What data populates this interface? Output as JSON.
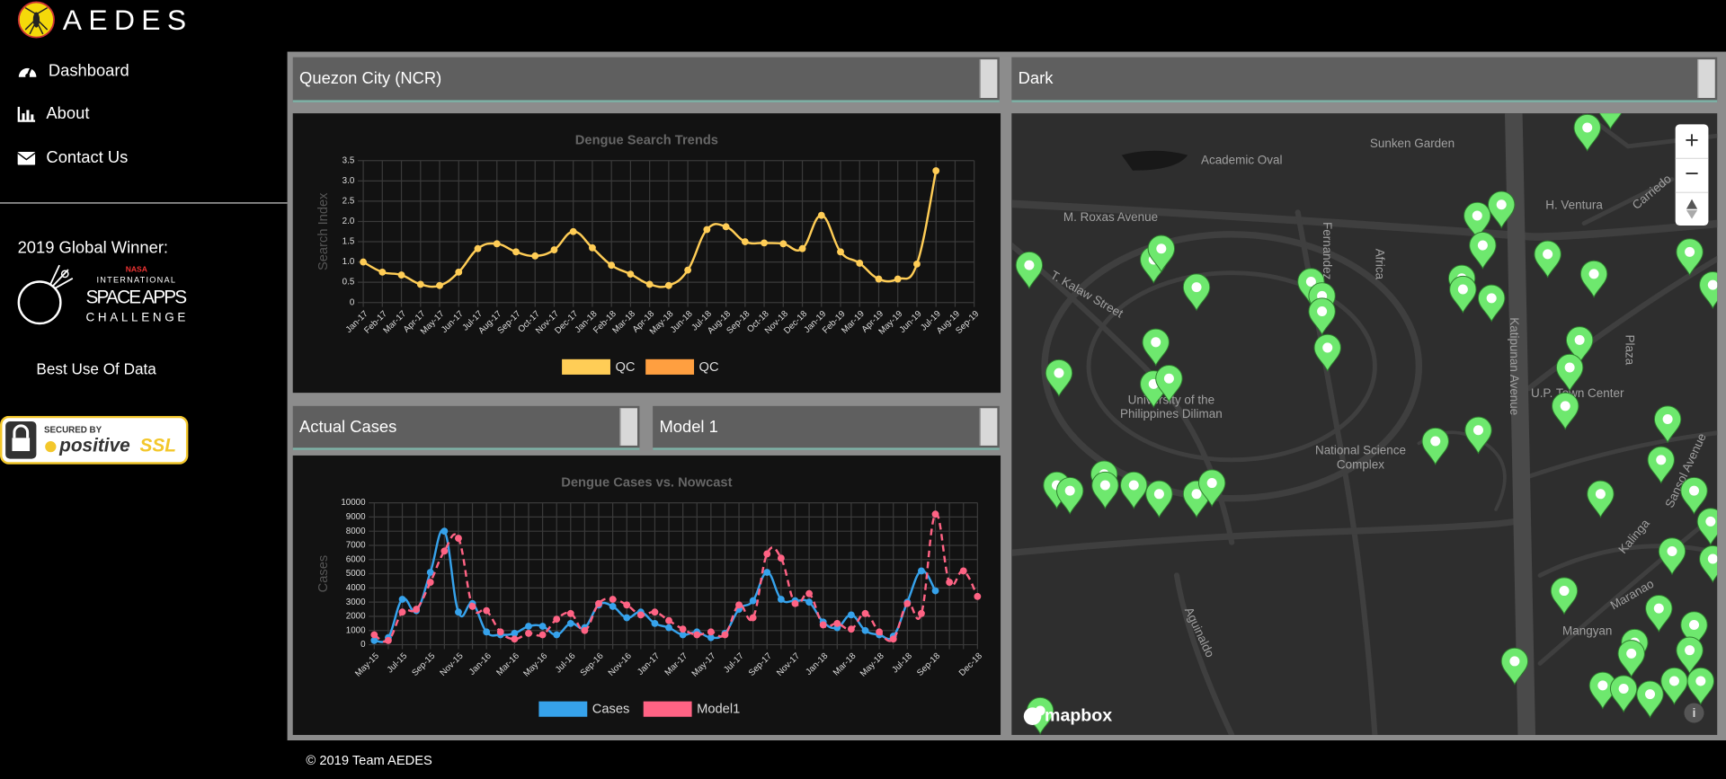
{
  "header": {
    "brand": "AEDES"
  },
  "sidebar": {
    "nav": [
      "Dashboard",
      "About",
      "Contact Us"
    ],
    "award_title": "2019 Global Winner:",
    "award_logo": [
      "NASA",
      "INTERNATIONAL",
      "SPACE APPS",
      "CHALLENGE"
    ],
    "award": "Best Use Of Data",
    "badge": [
      "SECURED BY",
      "positive",
      "SSL"
    ]
  },
  "selects": {
    "location": "Quezon City (NCR)",
    "style": "Dark",
    "data": "Actual Cases",
    "model": "Model 1"
  },
  "charts": [
    {
      "type": "line",
      "title": "Dengue Search Trends",
      "y_label": "Search Index",
      "categories": [
        "Jan-17",
        "Feb-17",
        "Mar-17",
        "Apr-17",
        "May-17",
        "Jun-17",
        "Jul-17",
        "Aug-17",
        "Sep-17",
        "Oct-17",
        "Nov-17",
        "Dec-17",
        "Jan-18",
        "Feb-18",
        "Mar-18",
        "Apr-18",
        "May-18",
        "Jun-18",
        "Jul-18",
        "Aug-18",
        "Sep-18",
        "Oct-18",
        "Nov-18",
        "Dec-18",
        "Jan-19",
        "Feb-19",
        "Mar-19",
        "Apr-19",
        "May-19",
        "Jun-19",
        "Jul-19",
        "Aug-19",
        "Sep-19"
      ],
      "series": [
        {
          "name": "QC",
          "color": "#ffcd56",
          "values": [
            1.0,
            0.75,
            0.68,
            0.45,
            0.42,
            0.75,
            1.33,
            1.45,
            1.25,
            1.15,
            1.3,
            1.75,
            1.35,
            0.92,
            0.7,
            0.45,
            0.42,
            0.8,
            1.8,
            1.87,
            1.5,
            1.47,
            1.45,
            1.33,
            2.15,
            1.25,
            0.97,
            0.58,
            0.58,
            0.95,
            3.25,
            null,
            null
          ]
        },
        {
          "name": "QC",
          "color": "#ff9f40",
          "values": [
            null,
            null,
            null,
            null,
            null,
            null,
            null,
            null,
            null,
            null,
            null,
            null,
            null,
            null,
            null,
            null,
            null,
            null,
            null,
            null,
            null,
            null,
            null,
            null,
            null,
            null,
            null,
            null,
            null,
            null,
            null,
            null,
            null
          ]
        }
      ],
      "ylim": [
        0,
        3.5
      ],
      "yticks": [
        0,
        0.5,
        {
          "value": 1,
          "label": "1.0"
        },
        1.5,
        {
          "value": 2,
          "label": "2.0"
        },
        2.5,
        {
          "value": 3,
          "label": "3.0"
        },
        3.5
      ],
      "grid": true
    },
    {
      "type": "line",
      "title": "Dengue Cases vs. Nowcast",
      "y_label": "Cases",
      "categories": [
        "May-15",
        null,
        "Jul-15",
        null,
        "Sep-15",
        null,
        "Nov-15",
        null,
        "Jan-16",
        null,
        "Mar-16",
        null,
        "May-16",
        null,
        "Jul-16",
        null,
        "Sep-16",
        null,
        "Nov-16",
        null,
        "Jan-17",
        null,
        "Mar-17",
        null,
        "May-17",
        null,
        "Jul-17",
        null,
        "Sep-17",
        null,
        "Nov-17",
        null,
        "Jan-18",
        null,
        "Mar-18",
        null,
        "May-18",
        null,
        "Jul-18",
        null,
        "Sep-18",
        null,
        null,
        "Dec-18"
      ],
      "series": [
        {
          "name": "Cases",
          "color": "#36a2eb",
          "dashed": false,
          "values": [
            300,
            500,
            3200,
            2400,
            5100,
            8000,
            2300,
            2900,
            900,
            700,
            800,
            1300,
            1300,
            700,
            1500,
            1200,
            2800,
            2700,
            1900,
            2300,
            1500,
            1200,
            700,
            900,
            500,
            800,
            2500,
            3100,
            5100,
            3200,
            3100,
            3000,
            1600,
            1200,
            2100,
            1000,
            700,
            600,
            3000,
            5200,
            3800,
            null,
            null,
            null
          ]
        },
        {
          "name": "Model1",
          "color": "#ff6384",
          "dashed": true,
          "values": [
            700,
            300,
            2300,
            2500,
            4400,
            6600,
            7500,
            2700,
            2400,
            900,
            400,
            800,
            700,
            1800,
            2200,
            1000,
            2900,
            3200,
            2800,
            2100,
            2300,
            1700,
            1100,
            700,
            900,
            700,
            2800,
            1900,
            6400,
            6100,
            2900,
            3600,
            1400,
            1500,
            1100,
            2200,
            900,
            400,
            2900,
            2200,
            9200,
            4400,
            5200,
            3400
          ]
        }
      ],
      "ylim": [
        0,
        10000
      ],
      "yticks": [
        0,
        1000,
        2000,
        3000,
        4000,
        5000,
        6000,
        7000,
        8000,
        9000,
        10000
      ],
      "grid": true
    }
  ],
  "map": {
    "labels": [
      "Sunken Garden",
      "Academic Oval",
      "M. Roxas Avenue",
      "T. Kalaw Street",
      "Fernandez",
      "Africa",
      "Katipunan Avenue",
      "H. Ventura",
      "Carriedo",
      "University of the",
      "Philippines Diliman",
      "National Science",
      "Complex",
      "U.P. Town Center",
      "Plaza",
      "Sansol Avenue",
      "Kalinga",
      "Maranao",
      "Mangyan",
      "Aguinaldo"
    ],
    "zoom": [
      "+",
      "−"
    ],
    "attribution": "mapbox"
  },
  "footer": "© 2019 Team AEDES"
}
